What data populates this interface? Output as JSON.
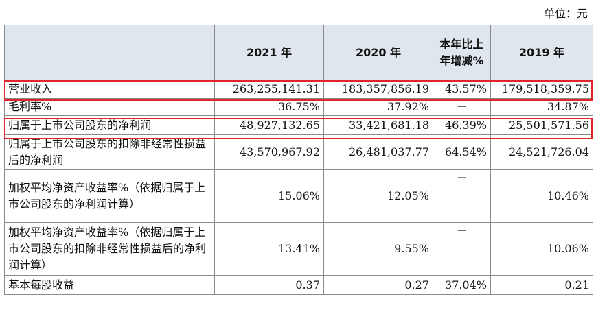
{
  "unit_label": "单位：元",
  "header": {
    "item": "",
    "col_2021": "2021 年",
    "col_2020": "2020 年",
    "col_change": "本年比上年增减%",
    "col_2019": "2019 年"
  },
  "rows": [
    {
      "label": "营业收入",
      "v2021": "263,255,141.31",
      "v2020": "183,357,856.19",
      "change": "43.57%",
      "v2019": "179,518,359.75",
      "highlighted": true
    },
    {
      "label": "毛利率%",
      "v2021": "36.75%",
      "v2020": "37.92%",
      "change": "－",
      "v2019": "34.87%",
      "highlighted": false
    },
    {
      "label": "归属于上市公司股东的净利润",
      "v2021": "48,927,132.65",
      "v2020": "33,421,681.18",
      "change": "46.39%",
      "v2019": "25,501,571.56",
      "highlighted": true
    },
    {
      "label": "归属于上市公司股东的扣除非经常性损益后的净利润",
      "v2021": "43,570,967.92",
      "v2020": "26,481,037.77",
      "change": "64.54%",
      "v2019": "24,521,726.04",
      "highlighted": false
    },
    {
      "label": "加权平均净资产收益率%（依据归属于上市公司股东的净利润计算）",
      "v2021": "15.06%",
      "v2020": "12.05%",
      "change": "－",
      "v2019": "10.46%",
      "highlighted": false
    },
    {
      "label": "加权平均净资产收益率%（依据归属于上市公司股东的扣除非经常性损益后的净利润计算）",
      "v2021": "13.41%",
      "v2020": "9.55%",
      "change": "－",
      "v2019": "10.06%",
      "highlighted": false
    },
    {
      "label": "基本每股收益",
      "v2021": "0.37",
      "v2020": "0.27",
      "change": "37.04%",
      "v2019": "0.21",
      "highlighted": false
    }
  ],
  "colors": {
    "header_bg": "#dfe6ee",
    "highlight_border": "#e0242e"
  }
}
